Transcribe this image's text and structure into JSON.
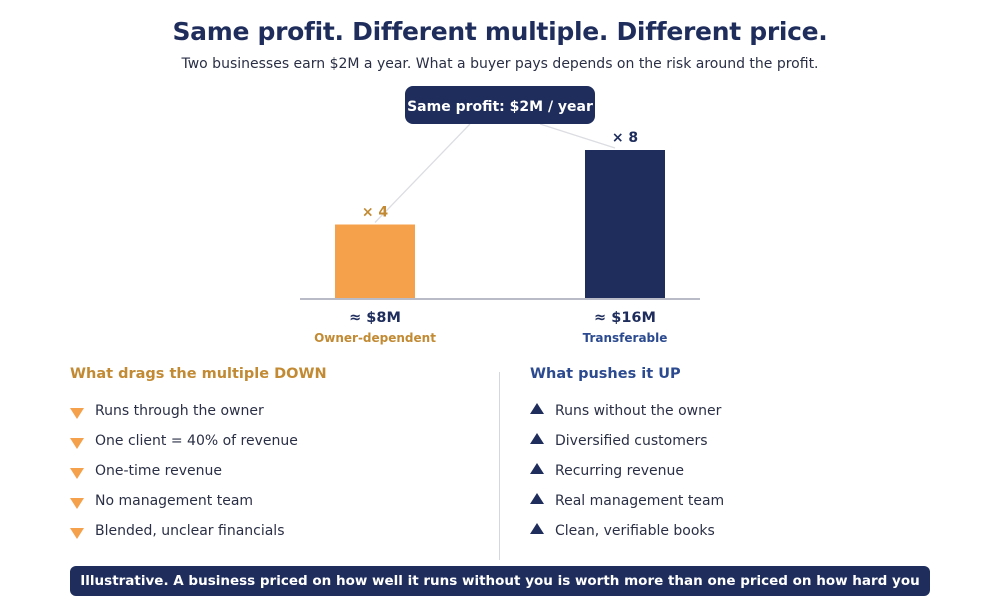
{
  "header": {
    "title": "Same profit. Different multiple. Different price.",
    "subtitle": "Two businesses earn $2M a year. What a buyer pays depends on the risk around the profit."
  },
  "chart_data": {
    "type": "bar",
    "callout": "Same profit: $2M / year",
    "categories": [
      "Owner-dependent",
      "Transferable"
    ],
    "values": [
      4,
      8
    ],
    "value_labels": [
      "× 4",
      "× 8"
    ],
    "price_labels": [
      "≈ $8M",
      "≈ $16M"
    ],
    "colors": [
      "#f5a04a",
      "#1e2d5c"
    ],
    "category_colors": [
      "#c28a33",
      "#2b4a8f"
    ],
    "ylim": [
      0,
      8
    ],
    "grid": false
  },
  "drags": {
    "heading": "What drags the multiple DOWN",
    "items": [
      "Runs through the owner",
      "One client = 40% of revenue",
      "One-time revenue",
      "No management team",
      "Blended, unclear financials"
    ]
  },
  "pushes": {
    "heading": "What pushes it UP",
    "items": [
      "Runs without the owner",
      "Diversified customers",
      "Recurring revenue",
      "Real management team",
      "Clean, verifiable books"
    ]
  },
  "footer": {
    "text": "Illustrative. A business priced on how well it runs without you is worth more than one priced on how hard you run it."
  },
  "icons": {
    "down": "triangle-down-icon",
    "up": "triangle-up-icon"
  }
}
